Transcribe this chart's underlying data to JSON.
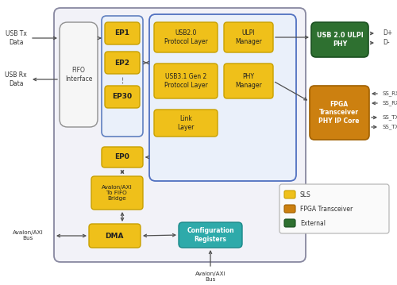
{
  "fig_width": 5.0,
  "fig_height": 3.59,
  "dpi": 100,
  "bg_color": "#ffffff",
  "colors": {
    "sls_yellow": "#EFC01A",
    "sls_yellow_border": "#C8A000",
    "fpga_orange": "#CC8010",
    "fpga_orange_border": "#A06000",
    "external_green": "#2E7030",
    "external_green_border": "#1A5020",
    "teal": "#2EAAAA",
    "teal_border": "#1A8888",
    "outer_box_bg": "#F2F2F8",
    "outer_box_border": "#8888A0",
    "inner_box_border": "#5070C0",
    "inner_box_bg": "#EAF0FA",
    "ep_box_border": "#6080C0",
    "ep_box_bg": "#EAF0FA",
    "arrow_color": "#505050",
    "legend_border": "#B0B0B0",
    "legend_bg": "#FAFAFA"
  },
  "labels": {
    "usb_tx": "USB Tx\nData",
    "usb_rx": "USB Rx\nData",
    "fifo_interface": "FIFO\nInterface",
    "ep1": "EP1",
    "ep2": "EP2",
    "ep30": "EP30",
    "ep0": "EP0",
    "avalon_fifo": "Avalon/AXI\nTo FIFO\nBridge",
    "dma": "DMA",
    "config_reg": "Configuration\nRegisters",
    "usb20_proto": "USB2.0\nProtocol Layer",
    "usb31_proto": "USB3.1 Gen 2\nProtocol Layer",
    "link_layer": "Link\nLayer",
    "ulpi_mgr": "ULPI\nManager",
    "phy_mgr": "PHY\nManager",
    "usb20_ulpi": "USB 2.0 ULPI\nPHY",
    "fpga_phy": "FPGA\nTransceiver\nPHY IP Core",
    "avalon_bus_left": "Avalon/AXI\nBus",
    "avalon_bus_bottom": "Avalon/AXI\nBus",
    "dp": "D+",
    "dm": "D-",
    "ss_rxp": "SS_RX+",
    "ss_rxm": "SS_RX-",
    "ss_txp": "SS_TX+",
    "ss_txm": "SS_TX-",
    "legend_sls": "SLS",
    "legend_fpga": "FPGA Transceiver",
    "legend_ext": "External"
  }
}
